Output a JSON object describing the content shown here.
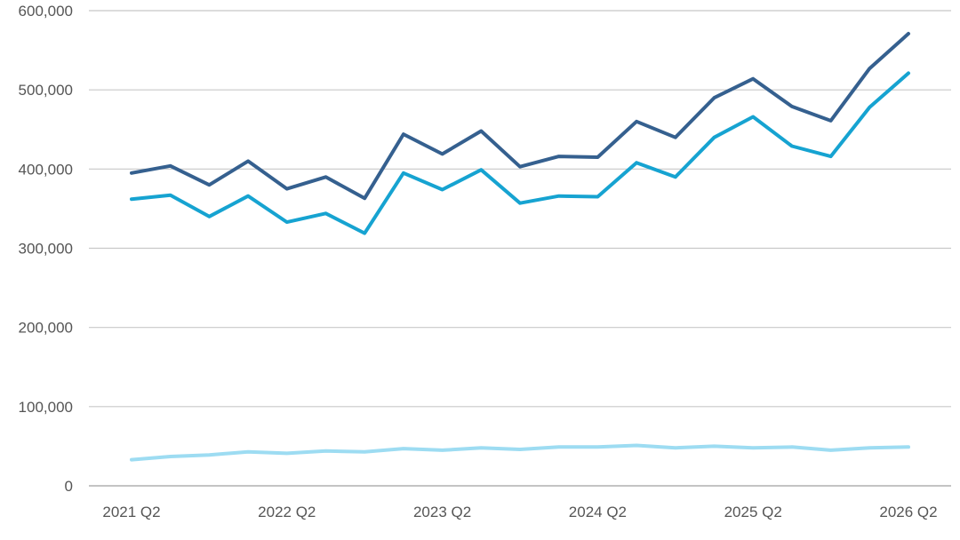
{
  "chart_data": {
    "type": "line",
    "title": "",
    "xlabel": "",
    "ylabel": "",
    "ylim": [
      0,
      600000
    ],
    "y_ticks": [
      0,
      100000,
      200000,
      300000,
      400000,
      500000,
      600000
    ],
    "y_tick_labels": [
      "0",
      "100,000",
      "200,000",
      "300,000",
      "400,000",
      "500,000",
      "600,000"
    ],
    "x": [
      "2021 Q2",
      "2021 Q3",
      "2021 Q4",
      "2022 Q1",
      "2022 Q2",
      "2022 Q3",
      "2022 Q4",
      "2023 Q1",
      "2023 Q2",
      "2023 Q3",
      "2023 Q4",
      "2024 Q1",
      "2024 Q2",
      "2024 Q3",
      "2024 Q4",
      "2025 Q1",
      "2025 Q2",
      "2025 Q3",
      "2025 Q4",
      "2026 Q1",
      "2026 Q2"
    ],
    "x_tick_labels": [
      "2021 Q2",
      "2022 Q2",
      "2023 Q2",
      "2024 Q2",
      "2025 Q2",
      "2026 Q2"
    ],
    "grid": true,
    "legend": "none",
    "series": [
      {
        "color": "#35608f",
        "values": [
          395000,
          404000,
          380000,
          410000,
          375000,
          390000,
          363000,
          444000,
          419000,
          448000,
          403000,
          416000,
          415000,
          460000,
          440000,
          490000,
          514000,
          479000,
          461000,
          527000,
          571000
        ]
      },
      {
        "color": "#16a3d1",
        "values": [
          362000,
          367000,
          340000,
          366000,
          333000,
          344000,
          319000,
          395000,
          374000,
          399000,
          357000,
          366000,
          365000,
          408000,
          390000,
          440000,
          466000,
          429000,
          416000,
          478000,
          521000
        ]
      },
      {
        "color": "#9ddcf2",
        "values": [
          33000,
          37000,
          39000,
          43000,
          41000,
          44000,
          43000,
          47000,
          45000,
          48000,
          46000,
          49000,
          49000,
          51000,
          48000,
          50000,
          48000,
          49000,
          45000,
          48000,
          49000
        ]
      }
    ]
  }
}
